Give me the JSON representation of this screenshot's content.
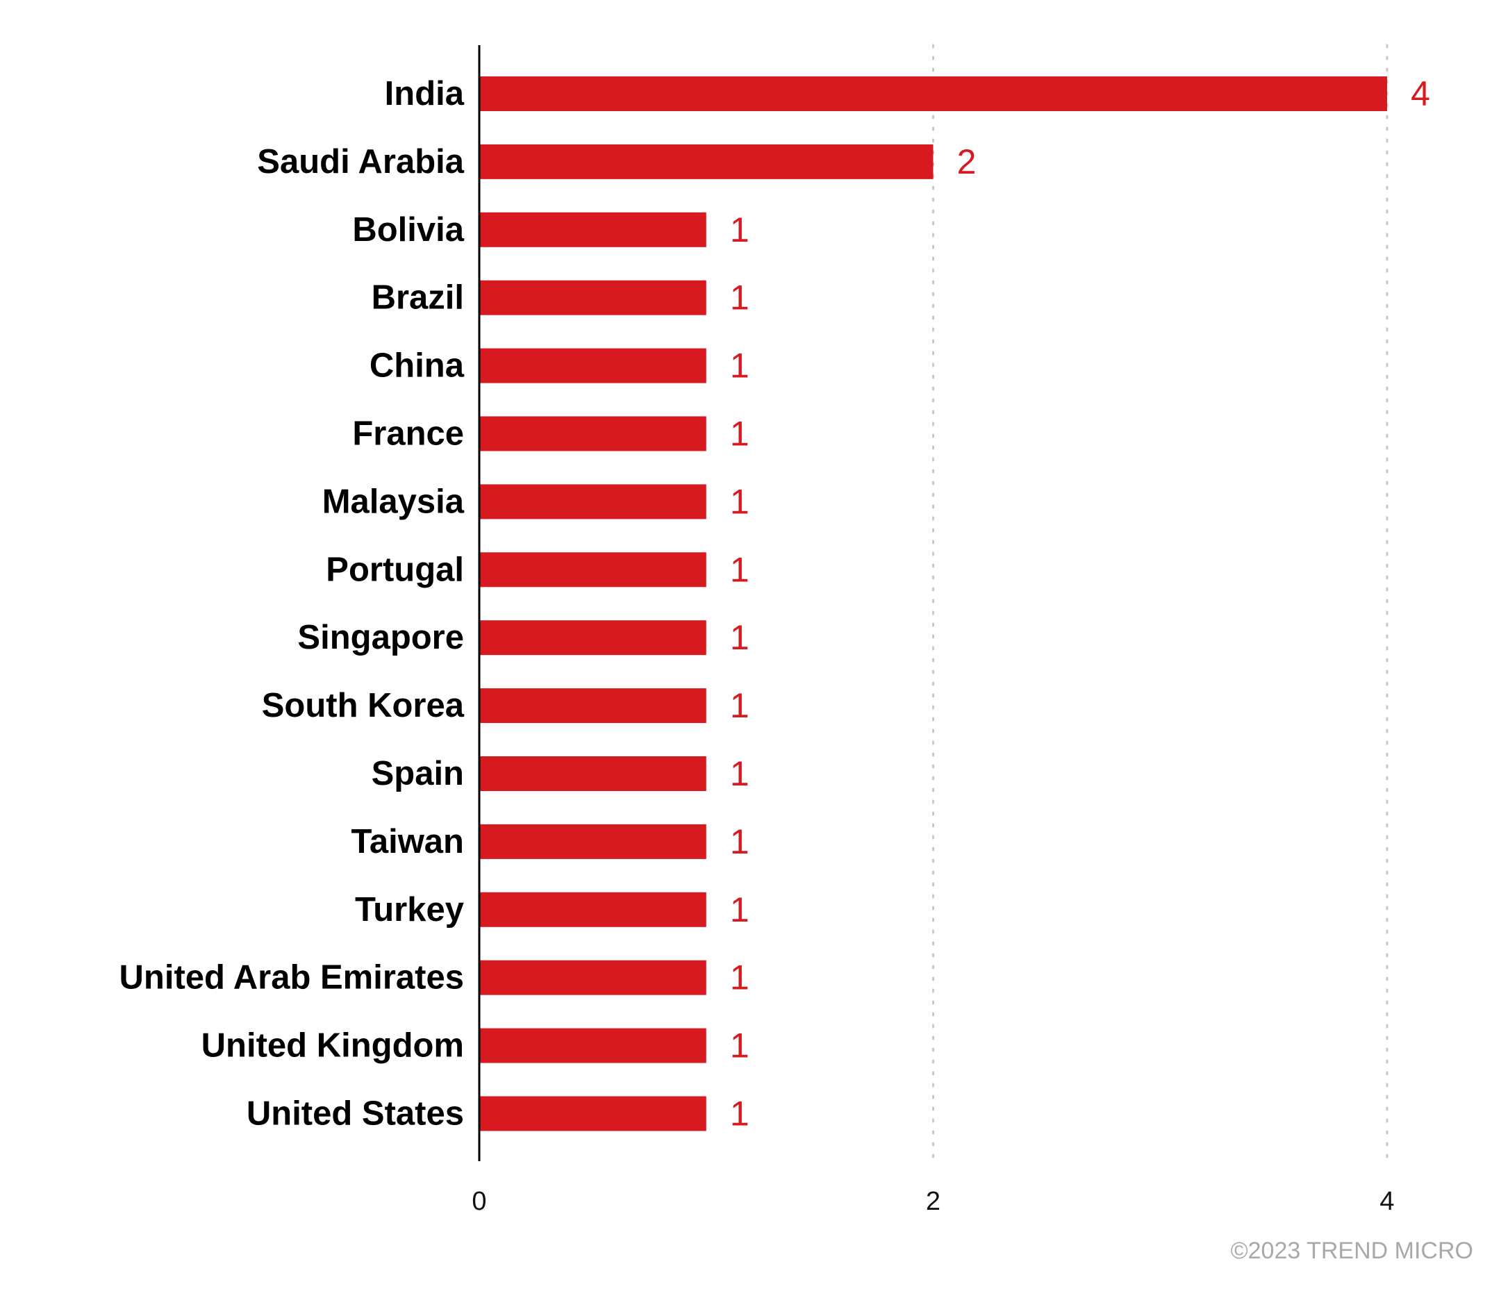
{
  "chart_data": {
    "type": "bar",
    "orientation": "horizontal",
    "categories": [
      "India",
      "Saudi Arabia",
      "Bolivia",
      "Brazil",
      "China",
      "France",
      "Malaysia",
      "Portugal",
      "Singapore",
      "South Korea",
      "Spain",
      "Taiwan",
      "Turkey",
      "United Arab Emirates",
      "United Kingdom",
      "United States"
    ],
    "values": [
      4,
      2,
      1,
      1,
      1,
      1,
      1,
      1,
      1,
      1,
      1,
      1,
      1,
      1,
      1,
      1
    ],
    "xlim": [
      0,
      4
    ],
    "x_ticks": [
      0,
      2,
      4
    ],
    "grid": "vertical dotted",
    "data_labels": true,
    "colors": {
      "bar": "#d71920",
      "value_label": "#d71920",
      "grid": "#c8c8c8",
      "axis": "#000000"
    }
  },
  "footer": {
    "copyright": "©2023 TREND MICRO"
  }
}
